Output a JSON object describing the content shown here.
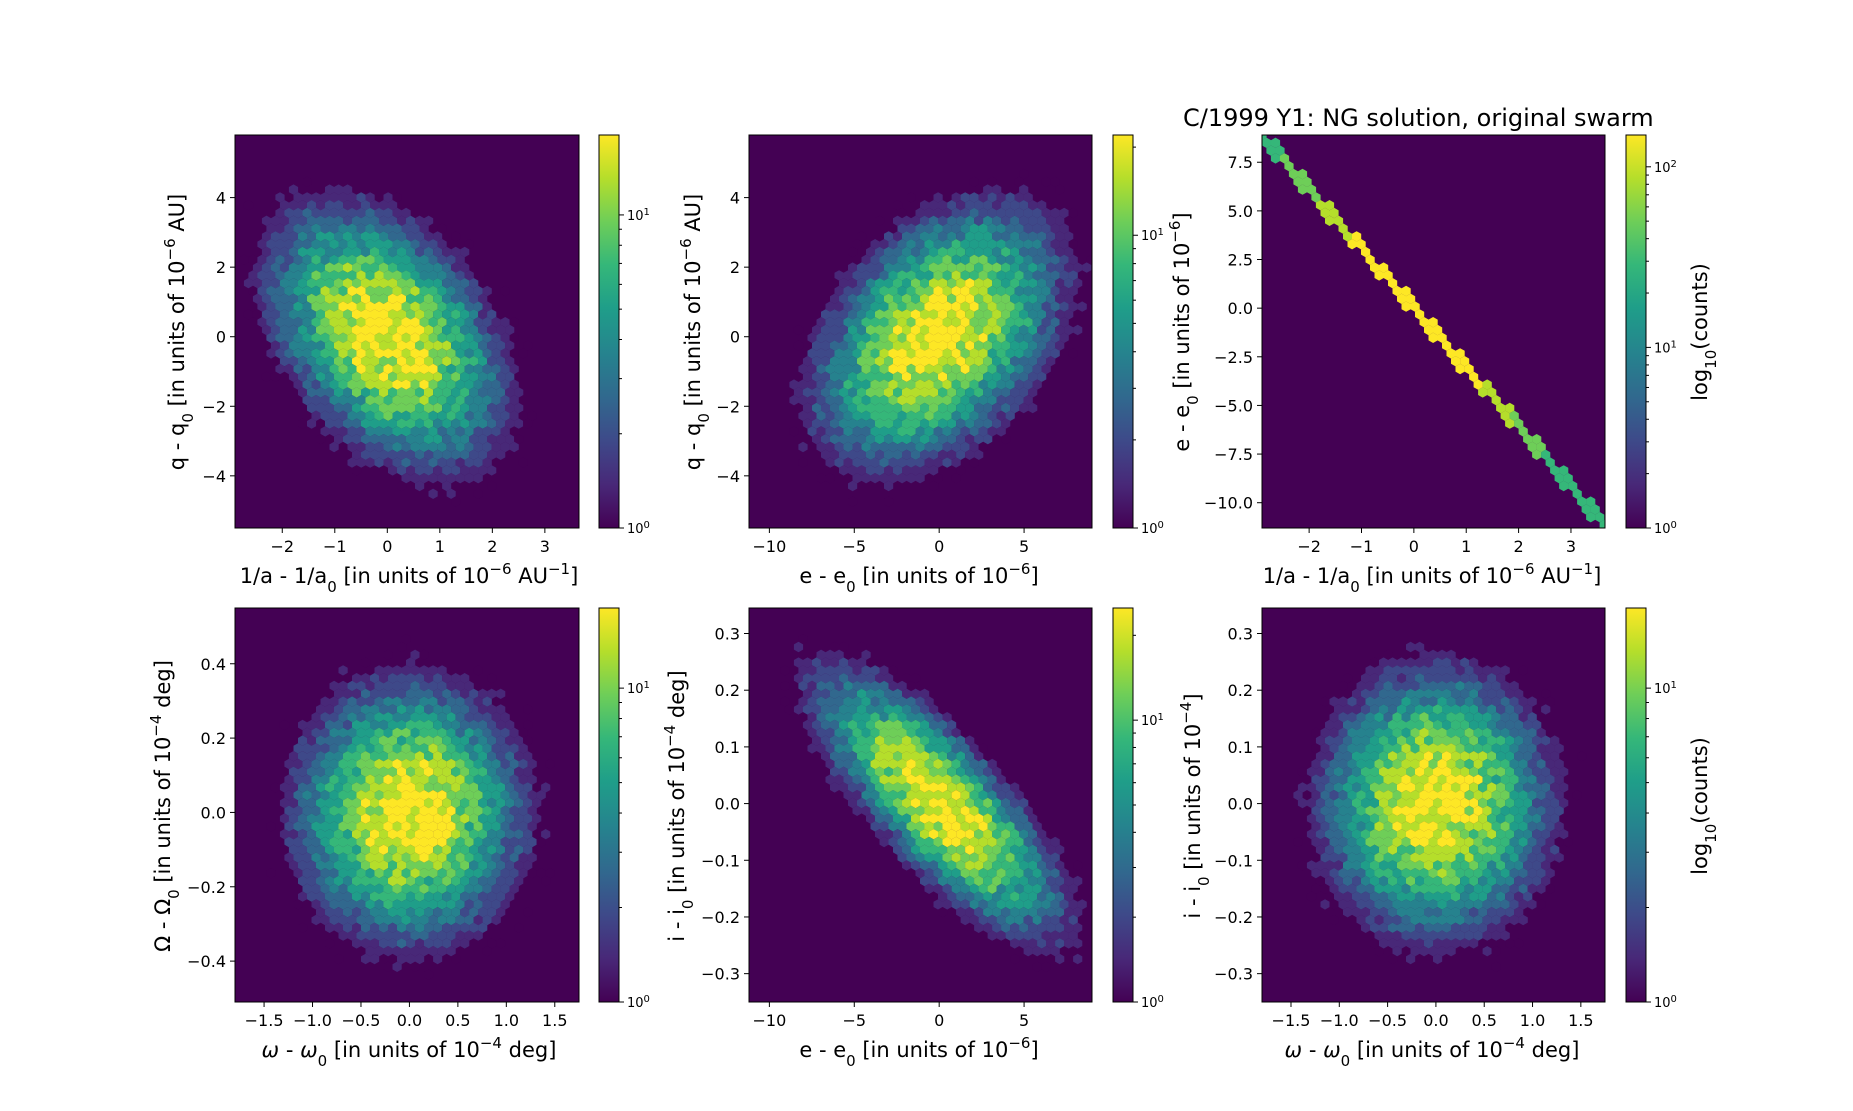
{
  "figure_title": "C/1999 Y1:  NG solution, original swarm",
  "colormap": [
    "#440154",
    "#482878",
    "#3e4989",
    "#31688e",
    "#26828e",
    "#1f9e89",
    "#35b779",
    "#6ece58",
    "#b5de2b",
    "#fde725"
  ],
  "chart_data": [
    {
      "type": "heatmap",
      "subtype": "hexbin",
      "title": "",
      "xlabel": "1/a - 1/a0 [in units of 10^-6 AU^-1]",
      "ylabel": "q - q0 [in units of 10^-6 AU]",
      "xlim": [
        -2.9,
        3.65
      ],
      "ylim": [
        -5.5,
        5.8
      ],
      "xticks": [
        "−2",
        "−1",
        "0",
        "1",
        "2",
        "3"
      ],
      "yticks": [
        "−4",
        "−2",
        "0",
        "2",
        "4"
      ],
      "correlation": -0.4,
      "sigma": [
        0.95,
        1.6
      ],
      "colorbar": {
        "scale": "log",
        "min": 1,
        "max": 18,
        "ticks": [
          "10^0",
          "10^1"
        ],
        "label": ""
      }
    },
    {
      "type": "heatmap",
      "subtype": "hexbin",
      "title": "",
      "xlabel": "e - e0 [in units of 10^-6]",
      "ylabel": "q - q0 [in units of 10^-6 AU]",
      "xlim": [
        -11.2,
        9.0
      ],
      "ylim": [
        -5.5,
        5.8
      ],
      "xticks": [
        "−10",
        "−5",
        "0",
        "5"
      ],
      "yticks": [
        "−4",
        "−2",
        "0",
        "2",
        "4"
      ],
      "correlation": 0.4,
      "sigma": [
        3.1,
        1.6
      ],
      "colorbar": {
        "scale": "log",
        "min": 1,
        "max": 22,
        "ticks": [
          "10^0",
          "10^1"
        ],
        "label": ""
      }
    },
    {
      "type": "heatmap",
      "subtype": "hexbin",
      "title": "C/1999 Y1:  NG solution, original swarm",
      "xlabel": "1/a - 1/a0 [in units of 10^-6 AU^-1]",
      "ylabel": "e - e0 [in units of 10^-6]",
      "xlim": [
        -2.9,
        3.65
      ],
      "ylim": [
        -11.3,
        8.9
      ],
      "xticks": [
        "−2",
        "−1",
        "0",
        "1",
        "2",
        "3"
      ],
      "yticks": [
        "−10.0",
        "−7.5",
        "−5.0",
        "−2.5",
        "0.0",
        "2.5",
        "5.0",
        "7.5"
      ],
      "relation": "e - e0 = -3.05 * (1/a - 1/a0)",
      "colorbar": {
        "scale": "log",
        "min": 1,
        "max": 150,
        "ticks": [
          "10^0",
          "10^1",
          "10^2"
        ],
        "label": "log10(counts)"
      }
    },
    {
      "type": "heatmap",
      "subtype": "hexbin",
      "title": "",
      "xlabel": "ω - ω0 [in units of 10^-4 deg]",
      "ylabel": "Ω - Ω0 [in units of 10^-4 deg]",
      "xlim": [
        -1.8,
        1.75
      ],
      "ylim": [
        -0.51,
        0.55
      ],
      "xticks": [
        "−1.5",
        "−1.0",
        "−0.5",
        "0.0",
        "0.5",
        "1.0",
        "1.5"
      ],
      "yticks": [
        "−0.4",
        "−0.2",
        "0.0",
        "0.2",
        "0.4"
      ],
      "correlation": 0.0,
      "sigma": [
        0.5,
        0.15
      ],
      "colorbar": {
        "scale": "log",
        "min": 1,
        "max": 18,
        "ticks": [
          "10^0",
          "10^1"
        ],
        "label": ""
      }
    },
    {
      "type": "heatmap",
      "subtype": "hexbin",
      "title": "",
      "xlabel": "e - e0 [in units of 10^-6]",
      "ylabel": "i - i0 [in units of 10^-4 deg]",
      "xlim": [
        -11.2,
        9.0
      ],
      "ylim": [
        -0.35,
        0.345
      ],
      "xticks": [
        "−10",
        "−5",
        "0",
        "5"
      ],
      "yticks": [
        "−0.3",
        "−0.2",
        "−0.1",
        "0.0",
        "0.1",
        "0.2",
        "0.3"
      ],
      "correlation": -0.78,
      "sigma": [
        3.1,
        0.1
      ],
      "colorbar": {
        "scale": "log",
        "min": 1,
        "max": 25,
        "ticks": [
          "10^0",
          "10^1"
        ],
        "label": ""
      }
    },
    {
      "type": "heatmap",
      "subtype": "hexbin",
      "title": "",
      "xlabel": "ω - ω0 [in units of 10^-4 deg]",
      "ylabel": "i - i0 [in units of 10^-4]",
      "xlim": [
        -1.8,
        1.75
      ],
      "ylim": [
        -0.35,
        0.345
      ],
      "xticks": [
        "−1.5",
        "−1.0",
        "−0.5",
        "0.0",
        "0.5",
        "1.0",
        "1.5"
      ],
      "yticks": [
        "−0.3",
        "−0.2",
        "−0.1",
        "0.0",
        "0.1",
        "0.2",
        "0.3"
      ],
      "correlation": 0.0,
      "sigma": [
        0.5,
        0.1
      ],
      "colorbar": {
        "scale": "log",
        "min": 1,
        "max": 18,
        "ticks": [
          "10^0",
          "10^1"
        ],
        "label": "log10(counts)"
      }
    }
  ]
}
